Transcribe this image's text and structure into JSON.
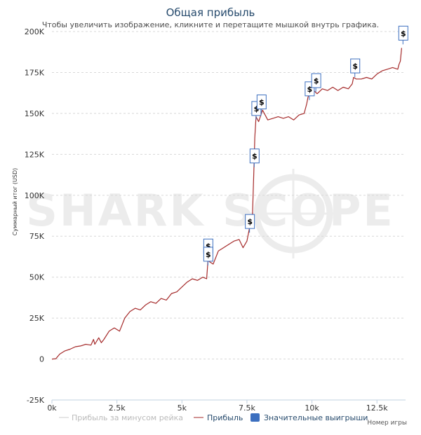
{
  "chart_data": {
    "type": "line",
    "title": "Общая прибыль",
    "subtitle": "Чтобы увеличить изображение, кликните и перетащите мышкой внутрь графика.",
    "ylabel": "Суммарный итог (USD)",
    "xlabel": "Номер игры",
    "watermark": "SHARK SCOPE",
    "xlim": [
      0,
      13600
    ],
    "ylim": [
      -25000,
      200000
    ],
    "x_ticks": [
      0,
      2500,
      5000,
      7500,
      10000,
      12500
    ],
    "x_tick_labels": [
      "0k",
      "2.5k",
      "5k",
      "7.5k",
      "10k",
      "12.5k"
    ],
    "y_ticks": [
      -25000,
      0,
      25000,
      50000,
      75000,
      100000,
      125000,
      150000,
      175000,
      200000
    ],
    "y_tick_labels": [
      "-25K",
      "0",
      "25K",
      "50K",
      "75K",
      "100K",
      "125K",
      "150K",
      "175K",
      "200K"
    ],
    "grid": true,
    "legend_position": "bottom",
    "series": [
      {
        "name": "Прибыль за минусом рейка",
        "color": "#cccccc",
        "x": [],
        "y": []
      },
      {
        "name": "Прибыль",
        "color": "#a52a2a",
        "x": [
          0,
          150,
          300,
          500,
          700,
          900,
          1100,
          1300,
          1500,
          1600,
          1650,
          1800,
          1900,
          2000,
          2200,
          2400,
          2600,
          2800,
          3000,
          3200,
          3400,
          3600,
          3800,
          4000,
          4200,
          4400,
          4600,
          4800,
          5000,
          5200,
          5400,
          5600,
          5800,
          5950,
          6000,
          6100,
          6200,
          6400,
          6600,
          6800,
          7000,
          7200,
          7350,
          7500,
          7600,
          7700,
          7780,
          7800,
          7850,
          7950,
          8100,
          8300,
          8500,
          8700,
          8900,
          9100,
          9300,
          9500,
          9700,
          9800,
          9850,
          10000,
          10200,
          10400,
          10600,
          10800,
          11000,
          11200,
          11400,
          11550,
          11600,
          11700,
          11900,
          12100,
          12300,
          12500,
          12700,
          12900,
          13100,
          13300,
          13350,
          13400,
          13450
        ],
        "y": [
          0,
          200,
          3000,
          5000,
          6000,
          7500,
          8000,
          9000,
          8500,
          12000,
          9000,
          13000,
          10000,
          12000,
          17000,
          19000,
          17000,
          25000,
          29000,
          31000,
          30000,
          33000,
          35000,
          34000,
          37000,
          36000,
          40000,
          41000,
          44000,
          47000,
          49000,
          48000,
          50000,
          49000,
          60000,
          59000,
          58000,
          66000,
          68000,
          70000,
          72000,
          73000,
          68000,
          72000,
          80000,
          82000,
          122000,
          135000,
          148000,
          145000,
          152000,
          146000,
          147000,
          148000,
          147000,
          148000,
          146000,
          149000,
          150000,
          156000,
          160000,
          165000,
          162000,
          165000,
          164000,
          166000,
          164000,
          166000,
          165000,
          168000,
          172000,
          171000,
          171000,
          172000,
          171000,
          174000,
          176000,
          177000,
          178000,
          177000,
          180000,
          182000,
          190000
        ]
      }
    ],
    "highlights": {
      "name": "Значительные выигрыши",
      "color": "#3c6fbf",
      "symbol": "$",
      "points": [
        {
          "x": 6000,
          "y": 69000
        },
        {
          "x": 6000,
          "y": 64000
        },
        {
          "x": 7600,
          "y": 84000
        },
        {
          "x": 7780,
          "y": 124000
        },
        {
          "x": 7850,
          "y": 153000
        },
        {
          "x": 8050,
          "y": 157000
        },
        {
          "x": 9900,
          "y": 165000
        },
        {
          "x": 10150,
          "y": 170000
        },
        {
          "x": 11650,
          "y": 179000
        },
        {
          "x": 13500,
          "y": 199000
        }
      ]
    }
  }
}
